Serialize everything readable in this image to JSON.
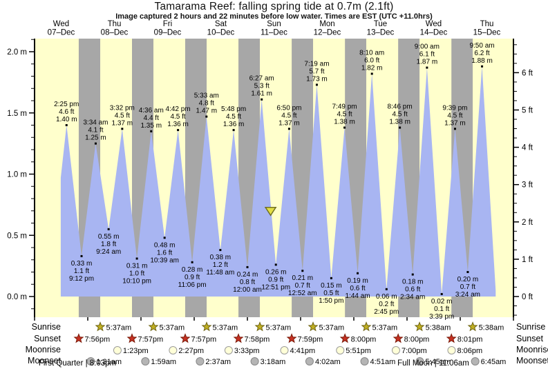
{
  "title": "Tamarama Reef: falling  spring tide at 0.7m (2.1ft)",
  "subtitle": "Image captured 2 hours and 22 minutes before low water. Times are EST (UTC +11.0hrs)",
  "row_labels": {
    "sunrise": "Sunrise",
    "sunset": "Sunset",
    "moonrise": "Moonrise",
    "moonset": "Moonset"
  },
  "annotations": {
    "first_quarter": "First Quarter | 8:03pm",
    "full_moon": "Full Moon | 11:06am"
  },
  "colors": {
    "day_band": "#ffffcc",
    "night_band": "#a7a7a7",
    "tide_fill": "#a8b5f2",
    "header_red": "#e53030",
    "sunrise_star": "#bfae20",
    "sunrise_star_edge": "#6e6414",
    "sunset_star": "#c53022",
    "sunset_star_edge": "#7a1a08",
    "moonrise_fill": "#ffffd8",
    "moonrise_edge": "#9a9a9a",
    "moonset_fill": "#b5b5b5",
    "moonset_edge": "#878787",
    "marker_fill": "#e3df45",
    "marker_edge": "#6f6f23",
    "axis": "#000000"
  },
  "chart_data": {
    "type": "area",
    "title": "Tamarama Reef: falling  spring tide at 0.7m (2.1ft)",
    "x_axis_days": [
      {
        "dow": "Wed",
        "date": "07–Dec"
      },
      {
        "dow": "Thu",
        "date": "08–Dec"
      },
      {
        "dow": "Fri",
        "date": "09–Dec"
      },
      {
        "dow": "Sat",
        "date": "10–Dec"
      },
      {
        "dow": "Sun",
        "date": "11–Dec"
      },
      {
        "dow": "Mon",
        "date": "12–Dec"
      },
      {
        "dow": "Tue",
        "date": "13–Dec"
      },
      {
        "dow": "Wed",
        "date": "14–Dec"
      },
      {
        "dow": "Thu",
        "date": "15–Dec"
      }
    ],
    "y_axis_left": {
      "unit": "m",
      "tick_labels": [
        "2.0 m",
        "1.5 m",
        "1.0 m",
        "0.5 m",
        "0.0 m"
      ],
      "tick_values": [
        2.0,
        1.5,
        1.0,
        0.5,
        0.0
      ],
      "minor_step": 0.1,
      "range_shown": [
        -0.17,
        2.11
      ]
    },
    "y_axis_right": {
      "unit": "ft",
      "tick_labels": [
        "6 ft",
        "5 ft",
        "4 ft",
        "3 ft",
        "2 ft",
        "1 ft",
        "0 ft"
      ],
      "tick_values": [
        6,
        5,
        4,
        3,
        2,
        1,
        0
      ],
      "minor_step": 0.25
    },
    "tides": [
      {
        "day": 0,
        "hr": 14.417,
        "time": "2:25 pm",
        "type": "high",
        "m": 1.4,
        "ft": 4.6
      },
      {
        "day": 0,
        "hr": 21.2,
        "time": "9:12 pm",
        "type": "low",
        "m": 0.33,
        "ft": 1.1
      },
      {
        "day": 1,
        "hr": 3.567,
        "time": "3:34 am",
        "type": "high",
        "m": 1.25,
        "ft": 4.1
      },
      {
        "day": 1,
        "hr": 9.4,
        "time": "9:24 am",
        "type": "low",
        "m": 0.55,
        "ft": 1.8
      },
      {
        "day": 1,
        "hr": 15.533,
        "time": "3:32 pm",
        "type": "high",
        "m": 1.37,
        "ft": 4.5
      },
      {
        "day": 1,
        "hr": 22.167,
        "time": "10:10 pm",
        "type": "low",
        "m": 0.31,
        "ft": 1.0
      },
      {
        "day": 2,
        "hr": 4.6,
        "time": "4:36 am",
        "type": "high",
        "m": 1.35,
        "ft": 4.4
      },
      {
        "day": 2,
        "hr": 10.65,
        "time": "10:39 am",
        "type": "low",
        "m": 0.48,
        "ft": 1.6
      },
      {
        "day": 2,
        "hr": 16.7,
        "time": "4:42 pm",
        "type": "high",
        "m": 1.36,
        "ft": 4.5
      },
      {
        "day": 2,
        "hr": 23.1,
        "time": "11:06 pm",
        "type": "low",
        "m": 0.28,
        "ft": 0.9
      },
      {
        "day": 3,
        "hr": 5.55,
        "time": "5:33 am",
        "type": "high",
        "m": 1.47,
        "ft": 4.8
      },
      {
        "day": 3,
        "hr": 11.8,
        "time": "11:48 am",
        "type": "low",
        "m": 0.38,
        "ft": 1.2
      },
      {
        "day": 3,
        "hr": 17.8,
        "time": "5:48 pm",
        "type": "high",
        "m": 1.36,
        "ft": 4.5
      },
      {
        "day": 4,
        "hr": 0.0,
        "time": "12:00 am",
        "type": "low",
        "m": 0.24,
        "ft": 0.8
      },
      {
        "day": 4,
        "hr": 6.45,
        "time": "6:27 am",
        "type": "high",
        "m": 1.61,
        "ft": 5.3
      },
      {
        "day": 4,
        "hr": 12.85,
        "time": "12:51 pm",
        "type": "low",
        "m": 0.26,
        "ft": 0.9
      },
      {
        "day": 4,
        "hr": 18.833,
        "time": "6:50 pm",
        "type": "high",
        "m": 1.37,
        "ft": 4.5
      },
      {
        "day": 5,
        "hr": 0.867,
        "time": "12:52 am",
        "type": "low",
        "m": 0.21,
        "ft": 0.7
      },
      {
        "day": 5,
        "hr": 7.317,
        "time": "7:19 am",
        "type": "high",
        "m": 1.73,
        "ft": 5.7
      },
      {
        "day": 5,
        "hr": 13.833,
        "time": "1:50 pm",
        "type": "low",
        "m": 0.15,
        "ft": 0.5
      },
      {
        "day": 5,
        "hr": 19.817,
        "time": "7:49 pm",
        "type": "high",
        "m": 1.38,
        "ft": 4.5
      },
      {
        "day": 6,
        "hr": 1.733,
        "time": "1:44 am",
        "type": "low",
        "m": 0.19,
        "ft": 0.6
      },
      {
        "day": 6,
        "hr": 8.167,
        "time": "8:10 am",
        "type": "high",
        "m": 1.82,
        "ft": 6.0
      },
      {
        "day": 6,
        "hr": 14.75,
        "time": "2:45 pm",
        "type": "low",
        "m": 0.06,
        "ft": 0.2
      },
      {
        "day": 6,
        "hr": 20.767,
        "time": "8:46 pm",
        "type": "high",
        "m": 1.38,
        "ft": 4.5
      },
      {
        "day": 7,
        "hr": 2.567,
        "time": "2:34 am",
        "type": "low",
        "m": 0.18,
        "ft": 0.6
      },
      {
        "day": 7,
        "hr": 9.0,
        "time": "9:00 am",
        "type": "high",
        "m": 1.87,
        "ft": 6.1
      },
      {
        "day": 7,
        "hr": 15.65,
        "time": "3:39 pm",
        "type": "low",
        "m": 0.02,
        "ft": 0.1
      },
      {
        "day": 7,
        "hr": 21.65,
        "time": "9:39 pm",
        "type": "high",
        "m": 1.37,
        "ft": 4.5
      },
      {
        "day": 8,
        "hr": 3.4,
        "time": "3:24 am",
        "type": "low",
        "m": 0.2,
        "ft": 0.7
      },
      {
        "day": 8,
        "hr": 9.833,
        "time": "9:50 am",
        "type": "high",
        "m": 1.88,
        "ft": 6.2
      }
    ],
    "curve_start": {
      "day": 0,
      "hr": 11.8,
      "m": 0.97
    },
    "curve_end": {
      "day": 8,
      "hr": 16.0,
      "m": 0.05
    },
    "capture_marker": {
      "day": 4,
      "hr": 10.48,
      "m": 0.7
    },
    "sun": {
      "sunrise": [
        {
          "day": 1,
          "hr": 5.617,
          "time": "5:37am"
        },
        {
          "day": 2,
          "hr": 5.617,
          "time": "5:37am"
        },
        {
          "day": 3,
          "hr": 5.617,
          "time": "5:37am"
        },
        {
          "day": 4,
          "hr": 5.617,
          "time": "5:37am"
        },
        {
          "day": 5,
          "hr": 5.617,
          "time": "5:37am"
        },
        {
          "day": 6,
          "hr": 5.617,
          "time": "5:37am"
        },
        {
          "day": 7,
          "hr": 5.633,
          "time": "5:38am"
        },
        {
          "day": 8,
          "hr": 5.633,
          "time": "5:38am"
        }
      ],
      "sunset": [
        {
          "day": 0,
          "hr": 19.933,
          "time": "7:56pm"
        },
        {
          "day": 1,
          "hr": 19.95,
          "time": "7:57pm"
        },
        {
          "day": 2,
          "hr": 19.95,
          "time": "7:57pm"
        },
        {
          "day": 3,
          "hr": 19.967,
          "time": "7:58pm"
        },
        {
          "day": 4,
          "hr": 19.983,
          "time": "7:59pm"
        },
        {
          "day": 5,
          "hr": 20.0,
          "time": "8:00pm"
        },
        {
          "day": 6,
          "hr": 20.0,
          "time": "8:00pm"
        },
        {
          "day": 7,
          "hr": 20.017,
          "time": "8:01pm"
        }
      ]
    },
    "moon": {
      "moonrise": [
        {
          "day": 1,
          "hr": 13.383,
          "time": "1:23pm"
        },
        {
          "day": 2,
          "hr": 14.45,
          "time": "2:27pm"
        },
        {
          "day": 3,
          "hr": 15.55,
          "time": "3:33pm"
        },
        {
          "day": 4,
          "hr": 16.683,
          "time": "4:41pm"
        },
        {
          "day": 5,
          "hr": 17.85,
          "time": "5:51pm"
        },
        {
          "day": 6,
          "hr": 19.0,
          "time": "7:00pm"
        },
        {
          "day": 7,
          "hr": 20.1,
          "time": "8:06pm"
        }
      ],
      "moonset": [
        {
          "day": 1,
          "hr": 1.35,
          "time": "1:21am"
        },
        {
          "day": 2,
          "hr": 1.983,
          "time": "1:59am"
        },
        {
          "day": 3,
          "hr": 2.617,
          "time": "2:37am"
        },
        {
          "day": 4,
          "hr": 3.3,
          "time": "3:18am"
        },
        {
          "day": 5,
          "hr": 4.033,
          "time": "4:02am"
        },
        {
          "day": 6,
          "hr": 4.85,
          "time": "4:51am"
        },
        {
          "day": 7,
          "hr": 5.75,
          "time": "5:45am"
        },
        {
          "day": 8,
          "hr": 6.75,
          "time": "6:45am"
        }
      ]
    }
  }
}
